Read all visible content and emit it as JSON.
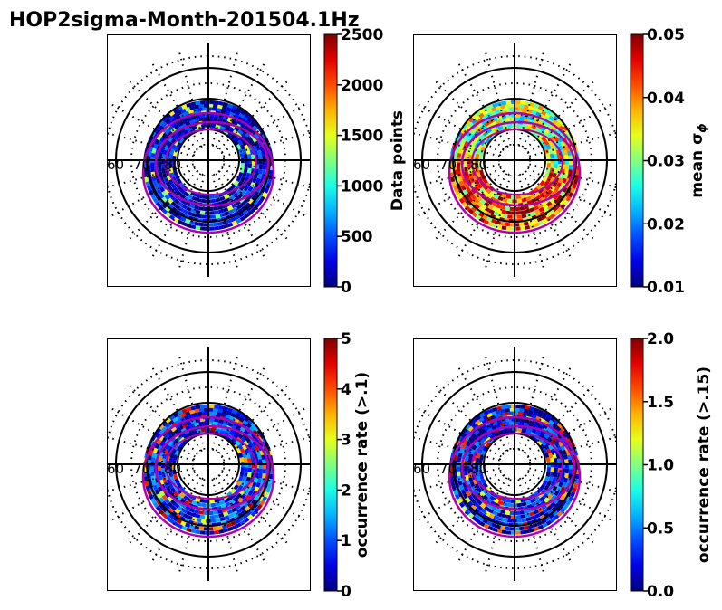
{
  "figure": {
    "title": "HOP2sigma-Month-201504.1Hz"
  },
  "chart_data": [
    {
      "type": "heatmap",
      "projection": "polar",
      "panel": "top-left",
      "quantity": "data points",
      "colorbar": {
        "label": "Data points",
        "range": [
          0,
          2500
        ],
        "ticks": [
          "0",
          "500",
          "1000",
          "1500",
          "2000",
          "2500"
        ],
        "colormap": "jet"
      },
      "latitude_labels": [
        "60",
        "70",
        "80"
      ],
      "latitude_rings": [
        50,
        60,
        70,
        80
      ],
      "ring_level": 0.08
    },
    {
      "type": "heatmap",
      "projection": "polar",
      "panel": "top-right",
      "quantity": "mean sigma phi",
      "colorbar": {
        "label": "mean σ",
        "label_subscript": "ϕ",
        "range": [
          0.01,
          0.05
        ],
        "ticks": [
          "0.01",
          "0.02",
          "0.03",
          "0.04",
          "0.05"
        ],
        "colormap": "jet"
      },
      "latitude_labels": [
        "60",
        "70",
        "80"
      ],
      "latitude_rings": [
        50,
        60,
        70,
        80
      ],
      "ring_level": 0.65
    },
    {
      "type": "heatmap",
      "projection": "polar",
      "panel": "bottom-left",
      "quantity": "occurrence rate (>.1)",
      "colorbar": {
        "label": "occurrence rate (>.1)",
        "range": [
          0,
          5
        ],
        "ticks": [
          "0",
          "1",
          "2",
          "3",
          "4",
          "5"
        ],
        "colormap": "jet"
      },
      "latitude_labels": [
        "60",
        "70",
        "80"
      ],
      "latitude_rings": [
        50,
        60,
        70,
        80
      ],
      "ring_level": 0.15
    },
    {
      "type": "heatmap",
      "projection": "polar",
      "panel": "bottom-right",
      "quantity": "occurrence rate (>.15)",
      "colorbar": {
        "label": "occurrence rate (>.15)",
        "range": [
          0.0,
          2.0
        ],
        "ticks": [
          "0.0",
          "0.5",
          "1.0",
          "1.5",
          "2.0"
        ],
        "colormap": "jet"
      },
      "latitude_labels": [
        "60",
        "70",
        "80"
      ],
      "latitude_rings": [
        50,
        60,
        70,
        80
      ],
      "ring_level": 0.12
    }
  ]
}
